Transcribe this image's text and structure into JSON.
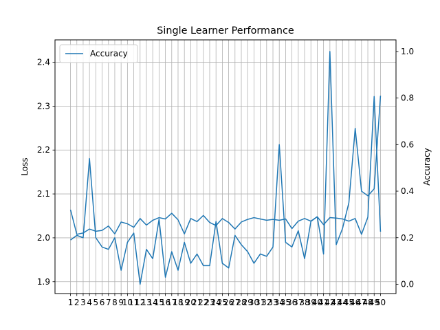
{
  "chart_data": {
    "type": "line",
    "title": "Single Learner Performance",
    "x": [
      1,
      2,
      3,
      4,
      5,
      6,
      7,
      8,
      9,
      10,
      11,
      12,
      13,
      14,
      15,
      16,
      17,
      18,
      19,
      20,
      21,
      22,
      23,
      24,
      25,
      26,
      27,
      28,
      29,
      30,
      31,
      32,
      33,
      34,
      35,
      36,
      37,
      38,
      39,
      40,
      41,
      42,
      43,
      44,
      45,
      46,
      47,
      48,
      49,
      50
    ],
    "x_tick_labels": [
      "1",
      "2",
      "3",
      "4",
      "5",
      "6",
      "7",
      "8",
      "9",
      "10",
      "11",
      "12",
      "13",
      "14",
      "15",
      "16",
      "17",
      "18",
      "19",
      "20",
      "21",
      "22",
      "23",
      "24",
      "25",
      "26",
      "27",
      "28",
      "29",
      "30",
      "31",
      "32",
      "33",
      "34",
      "35",
      "36",
      "37",
      "38",
      "39",
      "40",
      "41",
      "42",
      "43",
      "44",
      "45",
      "46",
      "47",
      "48",
      "49",
      "50"
    ],
    "left_axis": {
      "label": "Loss",
      "ylim": [
        1.873,
        2.451
      ],
      "ticks": [
        1.9,
        2.0,
        2.1,
        2.2,
        2.3,
        2.4
      ],
      "tick_labels": [
        "1.9",
        "2.0",
        "2.1",
        "2.2",
        "2.3",
        "2.4"
      ]
    },
    "right_axis": {
      "label": "Accuracy",
      "ylim": [
        -0.04,
        1.05
      ],
      "ticks": [
        0.0,
        0.2,
        0.4,
        0.6,
        0.8,
        1.0
      ],
      "tick_labels": [
        "0.0",
        "0.2",
        "0.4",
        "0.6",
        "0.8",
        "1.0"
      ]
    },
    "series": [
      {
        "name": "Accuracy",
        "axis": "left",
        "color": "#1f77b4",
        "values": [
          2.064,
          2.008,
          2.011,
          2.02,
          2.015,
          2.017,
          2.027,
          2.009,
          2.036,
          2.032,
          2.024,
          2.044,
          2.029,
          2.04,
          2.046,
          2.043,
          2.056,
          2.041,
          2.009,
          2.044,
          2.037,
          2.051,
          2.035,
          2.028,
          2.044,
          2.035,
          2.02,
          2.036,
          2.042,
          2.046,
          2.043,
          2.04,
          2.042,
          2.04,
          2.043,
          2.021,
          2.038,
          2.044,
          2.038,
          2.048,
          2.03,
          2.046,
          2.045,
          2.043,
          2.038,
          2.044,
          2.008,
          2.047,
          2.322,
          2.014
        ]
      },
      {
        "name": "",
        "axis": "right",
        "color": "#1f77b4",
        "values": [
          0.19,
          0.21,
          0.2,
          0.54,
          0.2,
          0.16,
          0.15,
          0.2,
          0.06,
          0.18,
          0.22,
          0.0,
          0.15,
          0.11,
          0.28,
          0.03,
          0.14,
          0.06,
          0.18,
          0.09,
          0.13,
          0.08,
          0.08,
          0.27,
          0.09,
          0.07,
          0.21,
          0.17,
          0.14,
          0.09,
          0.13,
          0.12,
          0.16,
          0.6,
          0.18,
          0.16,
          0.23,
          0.11,
          0.27,
          0.29,
          0.13,
          1.0,
          0.17,
          0.24,
          0.35,
          0.67,
          0.4,
          0.38,
          0.41,
          0.81
        ]
      }
    ],
    "grid": true,
    "legend": {
      "position": "upper left",
      "entries": [
        "Accuracy"
      ]
    }
  }
}
